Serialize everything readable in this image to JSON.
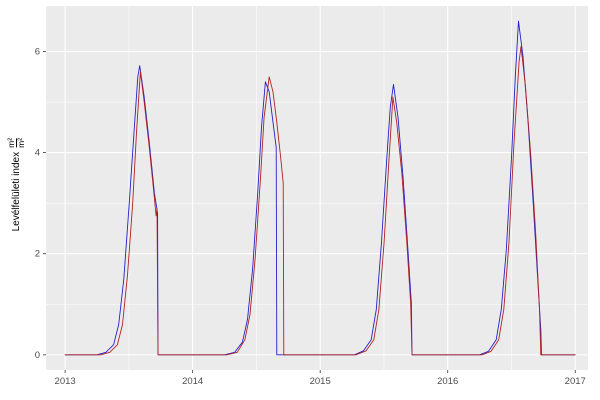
{
  "ylabel": {
    "text": "Levélfelületi index",
    "frac_num": "m²",
    "frac_den": "m²"
  },
  "chart_data": {
    "type": "line",
    "title": "",
    "xlabel": "",
    "ylabel": "Levélfelületi index m²/m²",
    "xlim": [
      2012.85,
      2017.1
    ],
    "ylim": [
      -0.3,
      6.9
    ],
    "xticks": [
      2013,
      2014,
      2015,
      2016,
      2017
    ],
    "xtick_labels": [
      "2013",
      "2014",
      "2015",
      "2016",
      "2017"
    ],
    "yticks": [
      0,
      2,
      4,
      6
    ],
    "ytick_labels": [
      "0",
      "2",
      "4",
      "6"
    ],
    "minor_xticks": [
      2013.5,
      2014.5,
      2015.5,
      2016.5
    ],
    "minor_yticks": [
      1,
      3,
      5
    ],
    "grid": true,
    "legend": "none",
    "colors": {
      "panel": "#EBEBEB",
      "grid_major": "#FFFFFF",
      "grid_minor": "#FFFFFF",
      "tick_label": "#4D4D4D",
      "tick_mark": "#333333"
    },
    "series": [
      {
        "name": "series-blue",
        "color": "#2222CC",
        "points": [
          [
            2013.0,
            0
          ],
          [
            2013.25,
            0
          ],
          [
            2013.32,
            0.05
          ],
          [
            2013.38,
            0.2
          ],
          [
            2013.42,
            0.6
          ],
          [
            2013.46,
            1.5
          ],
          [
            2013.5,
            2.9
          ],
          [
            2013.54,
            4.4
          ],
          [
            2013.57,
            5.5
          ],
          [
            2013.585,
            5.72
          ],
          [
            2013.62,
            5.1
          ],
          [
            2013.66,
            4.2
          ],
          [
            2013.7,
            3.2
          ],
          [
            2013.725,
            2.8
          ],
          [
            2013.728,
            0
          ],
          [
            2013.85,
            0
          ],
          [
            2014.0,
            0
          ],
          [
            2014.25,
            0
          ],
          [
            2014.33,
            0.05
          ],
          [
            2014.39,
            0.25
          ],
          [
            2014.43,
            0.7
          ],
          [
            2014.47,
            1.7
          ],
          [
            2014.51,
            3.2
          ],
          [
            2014.54,
            4.5
          ],
          [
            2014.57,
            5.4
          ],
          [
            2014.6,
            5.2
          ],
          [
            2014.63,
            4.6
          ],
          [
            2014.655,
            4.1
          ],
          [
            2014.66,
            0
          ],
          [
            2014.8,
            0
          ],
          [
            2015.0,
            0
          ],
          [
            2015.27,
            0
          ],
          [
            2015.34,
            0.08
          ],
          [
            2015.4,
            0.3
          ],
          [
            2015.44,
            0.9
          ],
          [
            2015.48,
            2.2
          ],
          [
            2015.52,
            3.8
          ],
          [
            2015.55,
            4.9
          ],
          [
            2015.575,
            5.35
          ],
          [
            2015.61,
            4.7
          ],
          [
            2015.65,
            3.5
          ],
          [
            2015.69,
            2.0
          ],
          [
            2015.715,
            1.0
          ],
          [
            2015.72,
            0
          ],
          [
            2015.85,
            0
          ],
          [
            2016.0,
            0
          ],
          [
            2016.25,
            0
          ],
          [
            2016.32,
            0.07
          ],
          [
            2016.38,
            0.3
          ],
          [
            2016.42,
            0.9
          ],
          [
            2016.46,
            2.1
          ],
          [
            2016.5,
            3.9
          ],
          [
            2016.53,
            5.5
          ],
          [
            2016.555,
            6.6
          ],
          [
            2016.59,
            5.9
          ],
          [
            2016.63,
            4.6
          ],
          [
            2016.67,
            3.0
          ],
          [
            2016.71,
            1.3
          ],
          [
            2016.73,
            0.5
          ],
          [
            2016.735,
            0
          ],
          [
            2016.85,
            0
          ],
          [
            2017.0,
            0
          ]
        ]
      },
      {
        "name": "series-red",
        "color": "#B22222",
        "points": [
          [
            2013.0,
            0
          ],
          [
            2013.28,
            0
          ],
          [
            2013.35,
            0.05
          ],
          [
            2013.41,
            0.2
          ],
          [
            2013.45,
            0.6
          ],
          [
            2013.49,
            1.6
          ],
          [
            2013.53,
            3.0
          ],
          [
            2013.56,
            4.4
          ],
          [
            2013.59,
            5.6
          ],
          [
            2013.62,
            5.0
          ],
          [
            2013.66,
            4.1
          ],
          [
            2013.7,
            3.1
          ],
          [
            2013.713,
            2.75
          ],
          [
            2013.72,
            2.9
          ],
          [
            2013.728,
            0
          ],
          [
            2013.85,
            0
          ],
          [
            2014.0,
            0
          ],
          [
            2014.27,
            0
          ],
          [
            2014.35,
            0.05
          ],
          [
            2014.41,
            0.3
          ],
          [
            2014.45,
            0.8
          ],
          [
            2014.49,
            1.9
          ],
          [
            2014.53,
            3.4
          ],
          [
            2014.56,
            4.7
          ],
          [
            2014.6,
            5.5
          ],
          [
            2014.63,
            5.2
          ],
          [
            2014.66,
            4.6
          ],
          [
            2014.69,
            3.9
          ],
          [
            2014.71,
            3.4
          ],
          [
            2014.715,
            0
          ],
          [
            2014.85,
            0
          ],
          [
            2015.0,
            0
          ],
          [
            2015.28,
            0
          ],
          [
            2015.36,
            0.08
          ],
          [
            2015.42,
            0.3
          ],
          [
            2015.46,
            0.9
          ],
          [
            2015.5,
            2.2
          ],
          [
            2015.54,
            3.9
          ],
          [
            2015.57,
            5.1
          ],
          [
            2015.6,
            4.6
          ],
          [
            2015.64,
            3.6
          ],
          [
            2015.68,
            2.2
          ],
          [
            2015.71,
            1.0
          ],
          [
            2015.72,
            0
          ],
          [
            2015.85,
            0
          ],
          [
            2016.0,
            0
          ],
          [
            2016.27,
            0
          ],
          [
            2016.34,
            0.07
          ],
          [
            2016.4,
            0.3
          ],
          [
            2016.44,
            0.9
          ],
          [
            2016.48,
            2.2
          ],
          [
            2016.52,
            4.2
          ],
          [
            2016.56,
            5.8
          ],
          [
            2016.575,
            6.1
          ],
          [
            2016.61,
            5.3
          ],
          [
            2016.65,
            4.0
          ],
          [
            2016.69,
            2.4
          ],
          [
            2016.72,
            0.9
          ],
          [
            2016.73,
            0
          ],
          [
            2016.85,
            0
          ],
          [
            2017.0,
            0
          ]
        ]
      }
    ]
  }
}
